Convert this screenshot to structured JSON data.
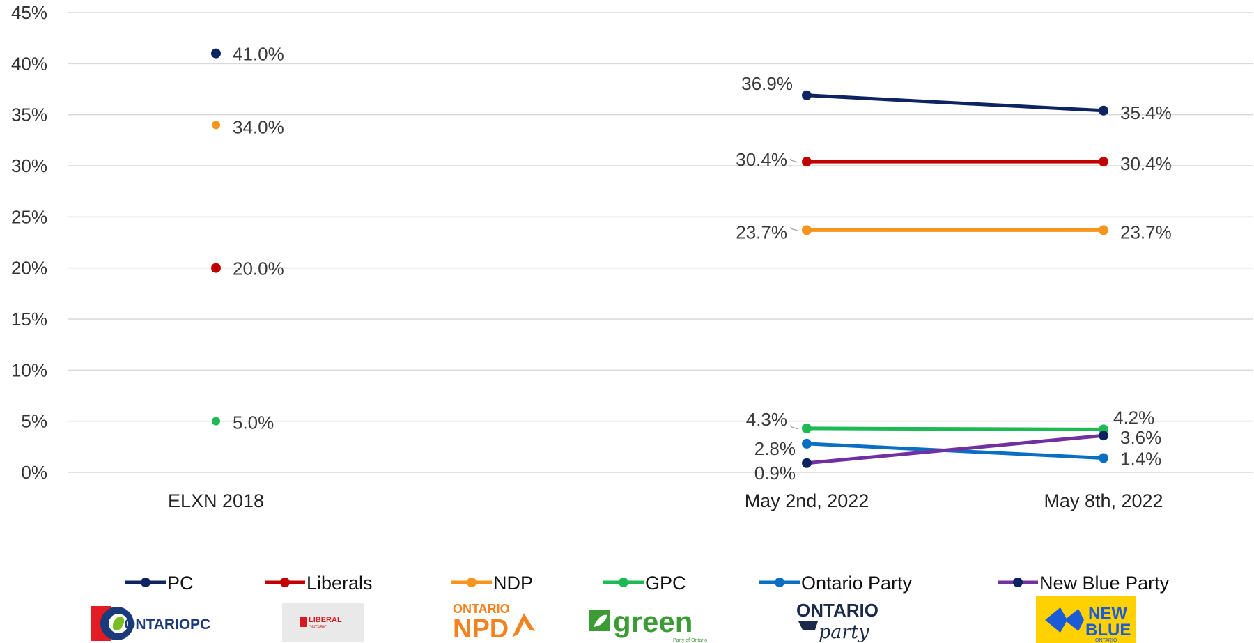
{
  "chart_data": {
    "type": "line",
    "categories": [
      "ELXN 2018",
      "May 2nd, 2022",
      "May 8th, 2022"
    ],
    "y_axis": {
      "ylim": [
        0,
        45
      ],
      "ticks": [
        0,
        5,
        10,
        15,
        20,
        25,
        30,
        35,
        40,
        45
      ],
      "tick_labels": [
        "0%",
        "5%",
        "10%",
        "15%",
        "20%",
        "25%",
        "30%",
        "35%",
        "40%",
        "45%"
      ],
      "grid": true
    },
    "legend_position": "bottom",
    "series": [
      {
        "name": "PC",
        "color": "#0d2461",
        "values": [
          41.0,
          36.9,
          35.4
        ],
        "labels": [
          "41.0%",
          "36.9%",
          "35.4%"
        ]
      },
      {
        "name": "Liberals",
        "color": "#c00000",
        "values": [
          20.0,
          30.4,
          30.4
        ],
        "labels": [
          "20.0%",
          "30.4%",
          "30.4%"
        ]
      },
      {
        "name": "NDP",
        "color": "#f7941d",
        "values": [
          34.0,
          23.7,
          23.7
        ],
        "labels": [
          "34.0%",
          "23.7%",
          "23.7%"
        ]
      },
      {
        "name": "GPC",
        "color": "#1db954",
        "values": [
          5.0,
          4.3,
          4.2
        ],
        "labels": [
          "5.0%",
          "4.3%",
          "4.2%"
        ]
      },
      {
        "name": "Ontario Party",
        "color": "#0a6fc2",
        "values": [
          null,
          2.8,
          1.4
        ],
        "labels": [
          "",
          "2.8%",
          "1.4%"
        ]
      },
      {
        "name": "New Blue Party",
        "color": "#7030a0",
        "marker_color": "#0d2461",
        "values": [
          null,
          0.9,
          3.6
        ],
        "labels": [
          "",
          "0.9%",
          "3.6%"
        ]
      }
    ]
  },
  "logos": {
    "pc": {
      "name": "Ontario PC",
      "text_a": "ONTARIO",
      "text_b": "PC",
      "colors": {
        "red": "#e31b23",
        "blue": "#1b3a7a",
        "green": "#78be20"
      }
    },
    "liberal": {
      "name": "Ontario Liberal",
      "text_a": "LIBERAL",
      "text_b": "ONTARIO",
      "color": "#d71920"
    },
    "ndp": {
      "name": "Ontario NDP",
      "text_a": "ONTARIO",
      "text_b": "NPD",
      "color": "#f58220"
    },
    "green": {
      "name": "Green Party of Ontario",
      "text_a": "green",
      "text_b": "Party of Ontario",
      "color": "#3d9b35"
    },
    "ontario_party": {
      "name": "Ontario Party",
      "text_a": "ONTARIO",
      "text_b": "party",
      "color": "#1b2a4a"
    },
    "new_blue": {
      "name": "New Blue Ontario",
      "text_a": "NEW",
      "text_b": "BLUE",
      "text_c": "ONTARIO",
      "colors": {
        "bg": "#ffd100",
        "blue": "#1c5bd8"
      }
    }
  }
}
